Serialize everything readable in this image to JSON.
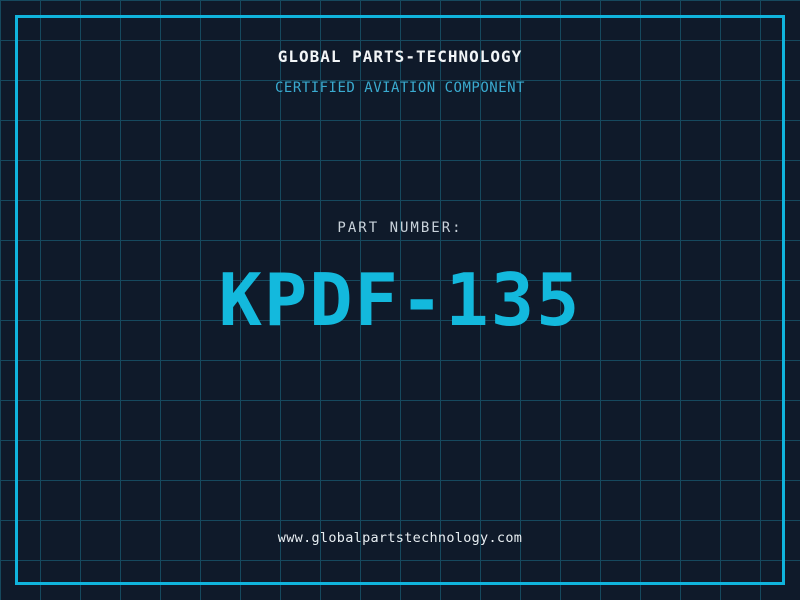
{
  "label": {
    "company_name": "GLOBAL PARTS-TECHNOLOGY",
    "certification": "CERTIFIED AVIATION COMPONENT",
    "part_number_label": "PART NUMBER:",
    "part_number": "KPDF-135",
    "website": "www.globalpartstechnology.com"
  },
  "colors": {
    "background": "#0f1a2a",
    "grid": "#16495e",
    "accent": "#10b4dc",
    "accent-bright": "#13b9dd",
    "title": "#f2f5f7",
    "subtitle": "#3aabd0",
    "label": "#c9d2da",
    "url": "#e8eef2"
  }
}
